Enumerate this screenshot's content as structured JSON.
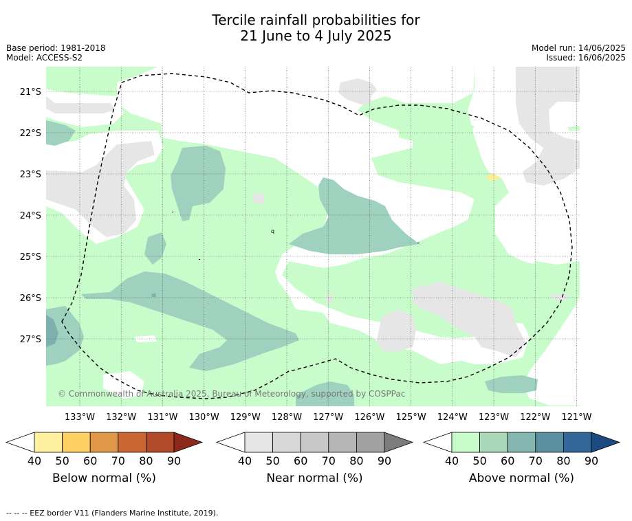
{
  "title": {
    "line1": "Tercile rainfall probabilities for",
    "line2": "21 June to 4 July 2025"
  },
  "base_period": "Base period: 1981-2018",
  "model": "Model: ACCESS-S2",
  "model_run": "Model run: 14/06/2025",
  "issued": "Issued: 16/06/2025",
  "map": {
    "lat_labels": [
      "21°S",
      "22°S",
      "23°S",
      "24°S",
      "25°S",
      "26°S",
      "27°S"
    ],
    "lon_labels": [
      "133°W",
      "132°W",
      "131°W",
      "130°W",
      "129°W",
      "128°W",
      "127°W",
      "126°W",
      "125°W",
      "124°W",
      "123°W",
      "122°W",
      "121°W"
    ],
    "copyright": "© Commonwealth of Australia 2025, Bureau of Meteorology, supported by COSPPac",
    "colors": {
      "above_50": "#c8fccb",
      "above_60": "#9fd1bf",
      "above_70": "#7fb0b0",
      "near_50": "#e6e6e6",
      "below_50": "#ffee99",
      "ocean": "#ffffff"
    }
  },
  "colorbars": [
    {
      "label": "Below normal (%)",
      "ticks": [
        "40",
        "50",
        "60",
        "70",
        "80",
        "90"
      ],
      "colors": [
        "#ffffff",
        "#fff0a0",
        "#fdd066",
        "#e09848",
        "#cc6633",
        "#b04a28",
        "#8b2a1a"
      ]
    },
    {
      "label": "Near normal (%)",
      "ticks": [
        "40",
        "50",
        "60",
        "70",
        "80",
        "90"
      ],
      "colors": [
        "#ffffff",
        "#e6e6e6",
        "#d8d8d8",
        "#c8c8c8",
        "#b6b6b6",
        "#a2a2a2",
        "#7c7c7c"
      ]
    },
    {
      "label": "Above normal (%)",
      "ticks": [
        "40",
        "50",
        "60",
        "70",
        "80",
        "90"
      ],
      "colors": [
        "#ffffff",
        "#c8fccb",
        "#a8d8b8",
        "#84b6b0",
        "#5a90a0",
        "#336699",
        "#1a4a80"
      ]
    }
  ],
  "footer": "--  --  -- EEZ border V11 (Flanders Marine Institute, 2019)."
}
